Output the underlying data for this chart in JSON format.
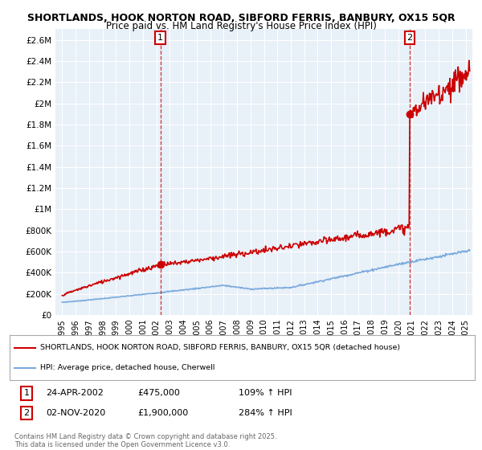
{
  "title_line1": "SHORTLANDS, HOOK NORTON ROAD, SIBFORD FERRIS, BANBURY, OX15 5QR",
  "title_line2": "Price paid vs. HM Land Registry's House Price Index (HPI)",
  "ylabel_ticks": [
    "£0",
    "£200K",
    "£400K",
    "£600K",
    "£800K",
    "£1M",
    "£1.2M",
    "£1.4M",
    "£1.6M",
    "£1.8M",
    "£2M",
    "£2.2M",
    "£2.4M",
    "£2.6M"
  ],
  "ytick_values": [
    0,
    200000,
    400000,
    600000,
    800000,
    1000000,
    1200000,
    1400000,
    1600000,
    1800000,
    2000000,
    2200000,
    2400000,
    2600000
  ],
  "xlim_start": 1994.5,
  "xlim_end": 2025.5,
  "ylim_min": 0,
  "ylim_max": 2700000,
  "background_color": "#ffffff",
  "plot_bg_color": "#e8f0f8",
  "grid_color": "#ffffff",
  "sale1_date": 2002.31,
  "sale1_price": 475000,
  "sale1_label": "1",
  "sale2_date": 2020.84,
  "sale2_price": 1900000,
  "sale2_label": "2",
  "house_color": "#cc0000",
  "hpi_color": "#7aaadd",
  "legend_house": "SHORTLANDS, HOOK NORTON ROAD, SIBFORD FERRIS, BANBURY, OX15 5QR (detached house)",
  "legend_hpi": "HPI: Average price, detached house, Cherwell",
  "annotation1_date": "24-APR-2002",
  "annotation1_price": "£475,000",
  "annotation1_hpi": "109% ↑ HPI",
  "annotation2_date": "02-NOV-2020",
  "annotation2_price": "£1,900,000",
  "annotation2_hpi": "284% ↑ HPI",
  "footnote": "Contains HM Land Registry data © Crown copyright and database right 2025.\nThis data is licensed under the Open Government Licence v3.0.",
  "xtick_years": [
    1995,
    1996,
    1997,
    1998,
    1999,
    2000,
    2001,
    2002,
    2003,
    2004,
    2005,
    2006,
    2007,
    2008,
    2009,
    2010,
    2011,
    2012,
    2013,
    2014,
    2015,
    2016,
    2017,
    2018,
    2019,
    2020,
    2021,
    2022,
    2023,
    2024,
    2025
  ]
}
